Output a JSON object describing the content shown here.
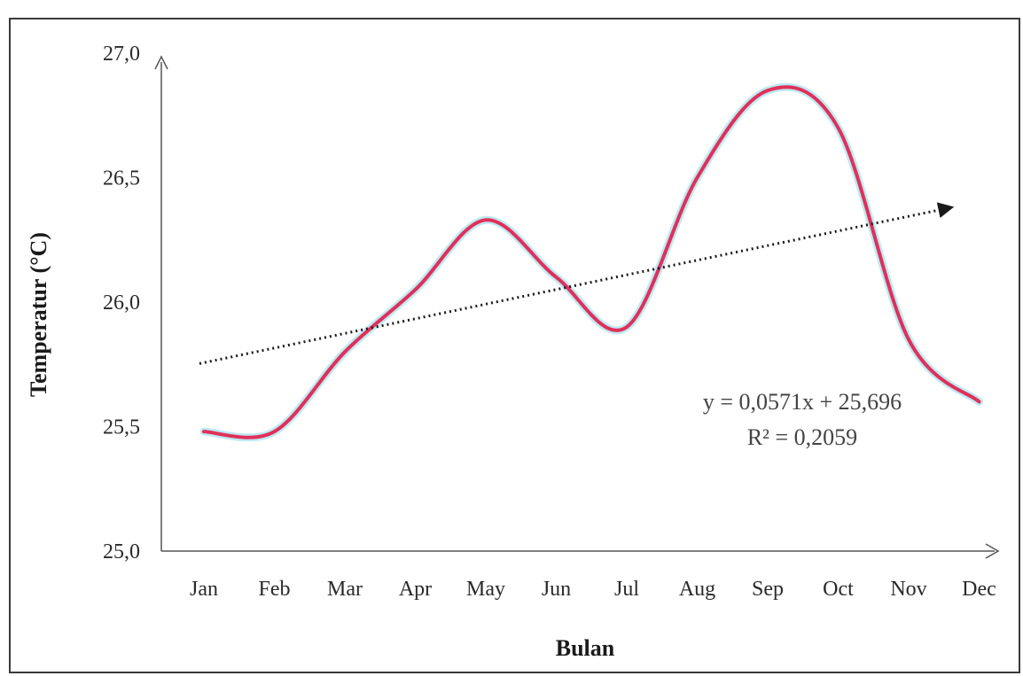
{
  "chart_data": {
    "type": "line",
    "title": "",
    "xlabel": "Bulan",
    "ylabel": "Temperatur (°C)",
    "categories": [
      "Jan",
      "Feb",
      "Mar",
      "Apr",
      "May",
      "Jun",
      "Jul",
      "Aug",
      "Sep",
      "Oct",
      "Nov",
      "Dec"
    ],
    "yticks": [
      "25,0",
      "25,5",
      "26,0",
      "26,5",
      "27,0"
    ],
    "ylim": [
      25.0,
      27.0
    ],
    "series": [
      {
        "values": [
          25.48,
          25.48,
          25.8,
          26.05,
          26.33,
          26.1,
          25.9,
          26.5,
          26.85,
          26.7,
          25.85,
          25.6
        ],
        "color": "#e0305a"
      }
    ],
    "trendline": {
      "slope": 0.0571,
      "intercept": 25.696,
      "equation": "y = 0,0571x + 25,696",
      "r2": "R² = 0,2059",
      "color": "#1a1a1a",
      "style": "dotted"
    },
    "grid": false,
    "legend": "none"
  }
}
